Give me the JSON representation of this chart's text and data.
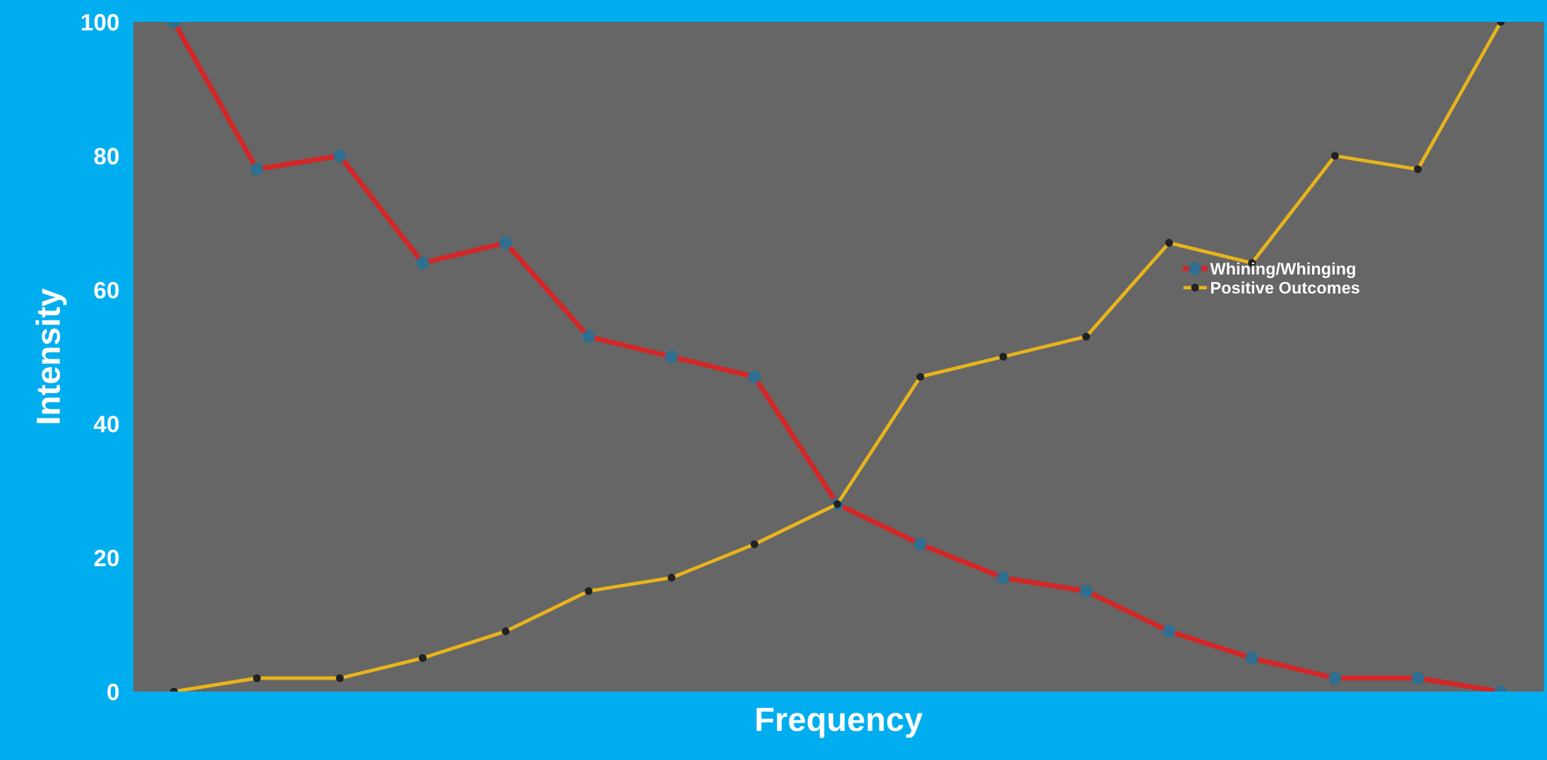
{
  "chart_data": {
    "type": "line",
    "xlabel": "Frequency",
    "ylabel": "Intensity",
    "categories": [
      null,
      null,
      null,
      null,
      null,
      null,
      null,
      null,
      null,
      null,
      null,
      null,
      null,
      null,
      null,
      null,
      null
    ],
    "series": [
      {
        "name": "Whining/Whinging",
        "color": "#d42626",
        "values": [
          100,
          78,
          80,
          64,
          67,
          53,
          50,
          47,
          28,
          22,
          17,
          15,
          9,
          5,
          2,
          2,
          0
        ]
      },
      {
        "name": "Positive Outcomes",
        "color": "#e8b41c",
        "values": [
          0,
          2,
          2,
          5,
          9,
          15,
          17,
          22,
          28,
          47,
          50,
          53,
          67,
          64,
          80,
          78,
          100
        ]
      }
    ],
    "ylim": [
      0,
      100
    ],
    "yticks": [
      0,
      20,
      40,
      60,
      80,
      100
    ],
    "grid": false,
    "legend": "right",
    "marker": "circle",
    "line_style": "solid"
  }
}
